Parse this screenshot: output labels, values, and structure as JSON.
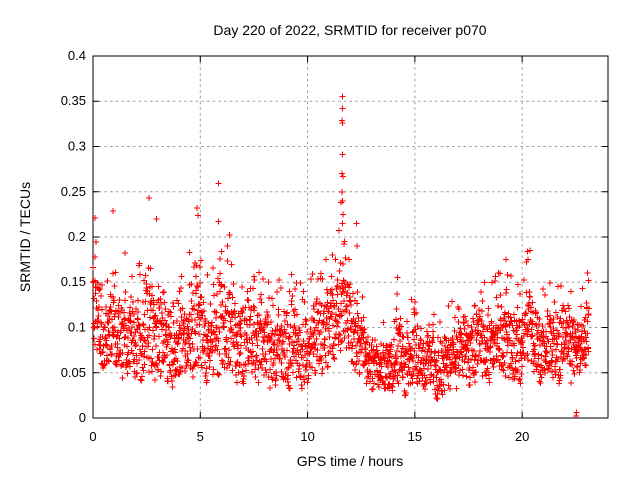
{
  "title": "Day 220 of 2022, SRMTID for receiver p070",
  "colors": {
    "marker": "#ff0000",
    "grid": "#9c9c9c",
    "axis": "#000000",
    "background": "#ffffff",
    "text": "#000000"
  },
  "chart_data": {
    "type": "scatter",
    "title": "Day 220 of 2022, SRMTID for receiver p070",
    "xlabel": "GPS time / hours",
    "ylabel": "SRMTID / TECUs",
    "xlim": [
      0,
      24
    ],
    "ylim": [
      0,
      0.4
    ],
    "xticks": [
      0,
      5,
      10,
      15,
      20
    ],
    "xtick_labels": [
      "0",
      "5",
      "10",
      "15",
      "20"
    ],
    "yticks": [
      0,
      0.05,
      0.1,
      0.15,
      0.2,
      0.25,
      0.3,
      0.35,
      0.4
    ],
    "ytick_labels": [
      "0",
      "0.05",
      "0.1",
      "0.15",
      "0.2",
      "0.25",
      "0.3",
      "0.35",
      "0.4"
    ],
    "grid": true,
    "legend": "none",
    "marker": "plus",
    "series_name": "SRMTID",
    "time_start": 0,
    "time_end": 23.12,
    "time_step": 0.01,
    "seed": 220,
    "band_keyframes": [
      [
        0.0,
        0.08,
        0.23
      ],
      [
        0.3,
        0.06,
        0.18
      ],
      [
        0.6,
        0.06,
        0.15
      ],
      [
        0.9,
        0.06,
        0.225
      ],
      [
        1.2,
        0.06,
        0.19
      ],
      [
        1.5,
        0.05,
        0.18
      ],
      [
        1.8,
        0.05,
        0.15
      ],
      [
        2.1,
        0.05,
        0.17
      ],
      [
        2.4,
        0.05,
        0.2
      ],
      [
        2.6,
        0.05,
        0.24
      ],
      [
        2.9,
        0.05,
        0.215
      ],
      [
        3.2,
        0.05,
        0.17
      ],
      [
        3.6,
        0.04,
        0.15
      ],
      [
        4.0,
        0.04,
        0.15
      ],
      [
        4.4,
        0.05,
        0.18
      ],
      [
        4.8,
        0.05,
        0.23
      ],
      [
        5.1,
        0.05,
        0.2
      ],
      [
        5.4,
        0.04,
        0.15
      ],
      [
        5.7,
        0.05,
        0.18
      ],
      [
        5.9,
        0.05,
        0.245
      ],
      [
        6.1,
        0.05,
        0.2
      ],
      [
        6.4,
        0.05,
        0.2
      ],
      [
        6.7,
        0.04,
        0.16
      ],
      [
        7.0,
        0.04,
        0.17
      ],
      [
        7.4,
        0.05,
        0.19
      ],
      [
        7.7,
        0.04,
        0.16
      ],
      [
        8.0,
        0.04,
        0.16
      ],
      [
        8.4,
        0.04,
        0.15
      ],
      [
        8.8,
        0.04,
        0.16
      ],
      [
        9.2,
        0.04,
        0.17
      ],
      [
        9.6,
        0.04,
        0.15
      ],
      [
        10.0,
        0.04,
        0.14
      ],
      [
        10.4,
        0.05,
        0.16
      ],
      [
        10.7,
        0.05,
        0.185
      ],
      [
        11.0,
        0.06,
        0.19
      ],
      [
        11.3,
        0.07,
        0.2
      ],
      [
        11.5,
        0.08,
        0.23
      ],
      [
        11.7,
        0.08,
        0.22
      ],
      [
        11.9,
        0.07,
        0.21
      ],
      [
        12.1,
        0.06,
        0.19
      ],
      [
        12.4,
        0.05,
        0.14
      ],
      [
        12.7,
        0.04,
        0.12
      ],
      [
        13.0,
        0.04,
        0.11
      ],
      [
        13.4,
        0.03,
        0.1
      ],
      [
        13.8,
        0.03,
        0.12
      ],
      [
        14.1,
        0.04,
        0.15
      ],
      [
        14.4,
        0.04,
        0.13
      ],
      [
        14.7,
        0.03,
        0.12
      ],
      [
        15.0,
        0.04,
        0.15
      ],
      [
        15.3,
        0.04,
        0.13
      ],
      [
        15.6,
        0.03,
        0.12
      ],
      [
        16.0,
        0.03,
        0.11
      ],
      [
        16.4,
        0.03,
        0.12
      ],
      [
        16.8,
        0.04,
        0.13
      ],
      [
        17.2,
        0.04,
        0.14
      ],
      [
        17.6,
        0.04,
        0.15
      ],
      [
        18.0,
        0.05,
        0.16
      ],
      [
        18.4,
        0.04,
        0.14
      ],
      [
        18.8,
        0.05,
        0.16
      ],
      [
        19.2,
        0.05,
        0.175
      ],
      [
        19.6,
        0.04,
        0.15
      ],
      [
        20.0,
        0.05,
        0.15
      ],
      [
        20.25,
        0.06,
        0.185
      ],
      [
        20.6,
        0.05,
        0.15
      ],
      [
        21.0,
        0.04,
        0.14
      ],
      [
        21.4,
        0.05,
        0.15
      ],
      [
        21.8,
        0.04,
        0.16
      ],
      [
        22.2,
        0.05,
        0.165
      ],
      [
        22.6,
        0.04,
        0.12
      ],
      [
        23.0,
        0.06,
        0.16
      ],
      [
        23.15,
        0.08,
        0.155
      ]
    ],
    "outliers": [
      [
        0.1,
        0.221
      ],
      [
        0.93,
        0.229
      ],
      [
        2.62,
        0.243
      ],
      [
        2.95,
        0.22
      ],
      [
        4.85,
        0.232
      ],
      [
        4.9,
        0.224
      ],
      [
        5.86,
        0.259
      ],
      [
        5.86,
        0.217
      ],
      [
        6.35,
        0.202
      ],
      [
        11.55,
        0.238
      ],
      [
        11.6,
        0.25
      ],
      [
        11.62,
        0.355
      ],
      [
        11.62,
        0.342
      ],
      [
        11.61,
        0.329
      ],
      [
        11.63,
        0.326
      ],
      [
        11.62,
        0.291
      ],
      [
        11.61,
        0.27
      ],
      [
        11.64,
        0.267
      ],
      [
        11.63,
        0.24
      ],
      [
        11.62,
        0.215
      ],
      [
        11.66,
        0.225
      ],
      [
        11.7,
        0.192
      ],
      [
        12.28,
        0.215
      ],
      [
        12.3,
        0.19
      ],
      [
        14.2,
        0.155
      ],
      [
        19.25,
        0.175
      ],
      [
        20.25,
        0.184
      ],
      [
        20.28,
        0.175
      ],
      [
        23.05,
        0.16
      ],
      [
        23.08,
        0.152
      ],
      [
        22.52,
        0.002
      ],
      [
        22.53,
        0.006
      ]
    ]
  }
}
